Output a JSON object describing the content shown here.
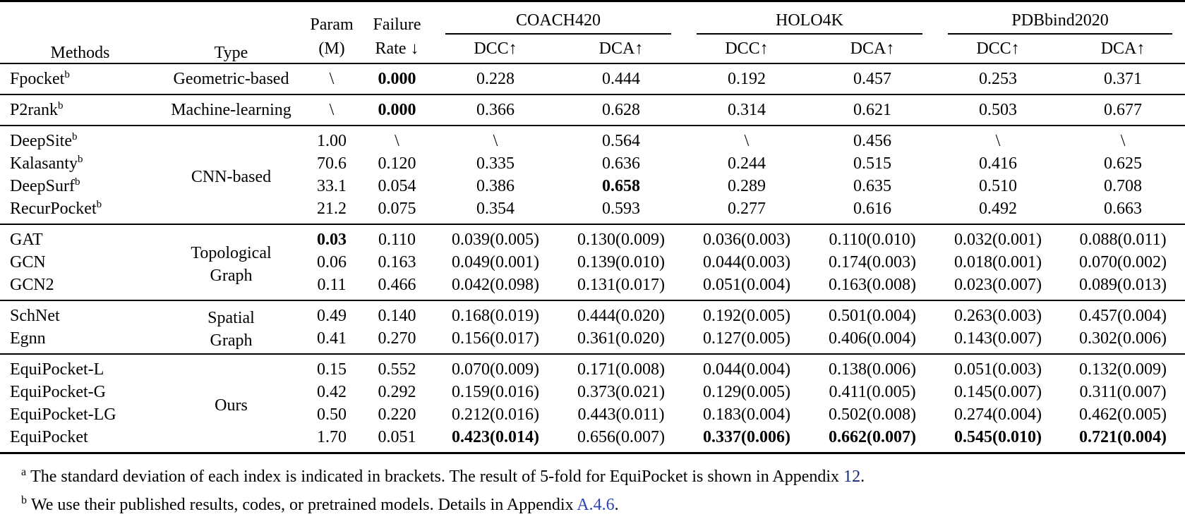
{
  "table": {
    "header": {
      "methods": "Methods",
      "type": "Type",
      "param_line1": "Param",
      "param_line2": "(M)",
      "failure_line1": "Failure",
      "failure_line2": "Rate ↓",
      "dataset_groups": [
        "COACH420",
        "HOLO4K",
        "PDBbind2020"
      ],
      "metric_dcc": "DCC↑",
      "metric_dca": "DCA↑"
    },
    "groups": [
      {
        "type": [
          "Geometric-based"
        ],
        "rows": [
          {
            "method": "Fpocket",
            "sup": "b",
            "cells": [
              "\\",
              "0.000",
              "0.228",
              "0.444",
              "0.192",
              "0.457",
              "0.253",
              "0.371"
            ],
            "bold": [
              1
            ]
          }
        ]
      },
      {
        "type": [
          "Machine-learning"
        ],
        "rows": [
          {
            "method": "P2rank",
            "sup": "b",
            "cells": [
              "\\",
              "0.000",
              "0.366",
              "0.628",
              "0.314",
              "0.621",
              "0.503",
              "0.677"
            ],
            "bold": [
              1
            ]
          }
        ]
      },
      {
        "type": [
          "CNN-based"
        ],
        "rows": [
          {
            "method": "DeepSite",
            "sup": "b",
            "cells": [
              "1.00",
              "\\",
              "\\",
              "0.564",
              "\\",
              "0.456",
              "\\",
              "\\"
            ],
            "bold": []
          },
          {
            "method": "Kalasanty",
            "sup": "b",
            "cells": [
              "70.6",
              "0.120",
              "0.335",
              "0.636",
              "0.244",
              "0.515",
              "0.416",
              "0.625"
            ],
            "bold": []
          },
          {
            "method": "DeepSurf",
            "sup": "b",
            "cells": [
              "33.1",
              "0.054",
              "0.386",
              "0.658",
              "0.289",
              "0.635",
              "0.510",
              "0.708"
            ],
            "bold": [
              3
            ]
          },
          {
            "method": "RecurPocket",
            "sup": "b",
            "cells": [
              "21.2",
              "0.075",
              "0.354",
              "0.593",
              "0.277",
              "0.616",
              "0.492",
              "0.663"
            ],
            "bold": []
          }
        ]
      },
      {
        "type": [
          "Topological",
          "Graph"
        ],
        "rows": [
          {
            "method": "GAT",
            "cells": [
              "0.03",
              "0.110",
              "0.039(0.005)",
              "0.130(0.009)",
              "0.036(0.003)",
              "0.110(0.010)",
              "0.032(0.001)",
              "0.088(0.011)"
            ],
            "bold": [
              0
            ]
          },
          {
            "method": "GCN",
            "cells": [
              "0.06",
              "0.163",
              "0.049(0.001)",
              "0.139(0.010)",
              "0.044(0.003)",
              "0.174(0.003)",
              "0.018(0.001)",
              "0.070(0.002)"
            ],
            "bold": []
          },
          {
            "method": "GCN2",
            "cells": [
              "0.11",
              "0.466",
              "0.042(0.098)",
              "0.131(0.017)",
              "0.051(0.004)",
              "0.163(0.008)",
              "0.023(0.007)",
              "0.089(0.013)"
            ],
            "bold": []
          }
        ]
      },
      {
        "type": [
          "Spatial",
          "Graph"
        ],
        "rows": [
          {
            "method": "SchNet",
            "cells": [
              "0.49",
              "0.140",
              "0.168(0.019)",
              "0.444(0.020)",
              "0.192(0.005)",
              "0.501(0.004)",
              "0.263(0.003)",
              "0.457(0.004)"
            ],
            "bold": []
          },
          {
            "method": "Egnn",
            "cells": [
              "0.41",
              "0.270",
              "0.156(0.017)",
              "0.361(0.020)",
              "0.127(0.005)",
              "0.406(0.004)",
              "0.143(0.007)",
              "0.302(0.006)"
            ],
            "bold": []
          }
        ]
      },
      {
        "type": [
          "Ours"
        ],
        "rows": [
          {
            "method": "EquiPocket-L",
            "cells": [
              "0.15",
              "0.552",
              "0.070(0.009)",
              "0.171(0.008)",
              "0.044(0.004)",
              "0.138(0.006)",
              "0.051(0.003)",
              "0.132(0.009)"
            ],
            "bold": []
          },
          {
            "method": "EquiPocket-G",
            "cells": [
              "0.42",
              "0.292",
              "0.159(0.016)",
              "0.373(0.021)",
              "0.129(0.005)",
              "0.411(0.005)",
              "0.145(0.007)",
              "0.311(0.007)"
            ],
            "bold": []
          },
          {
            "method": "EquiPocket-LG",
            "cells": [
              "0.50",
              "0.220",
              "0.212(0.016)",
              "0.443(0.011)",
              "0.183(0.004)",
              "0.502(0.008)",
              "0.274(0.004)",
              "0.462(0.005)"
            ],
            "bold": []
          },
          {
            "method": "EquiPocket",
            "cells": [
              "1.70",
              "0.051",
              "0.423(0.014)",
              "0.656(0.007)",
              "0.337(0.006)",
              "0.662(0.007)",
              "0.545(0.010)",
              "0.721(0.004)"
            ],
            "bold": [
              2,
              4,
              5,
              6,
              7
            ]
          }
        ]
      }
    ],
    "footnotes": [
      {
        "sup": "a",
        "text_before": "The standard deviation of each index is indicated in brackets. The result of 5-fold for EquiPocket is shown in Appendix ",
        "link": "12",
        "link_color": "#152b80",
        "text_after": "."
      },
      {
        "sup": "b",
        "text_before": "We use their published results, codes, or pretrained models. Details in Appendix ",
        "link": "A.4.6",
        "link_color": "#2c44b5",
        "text_after": "."
      }
    ]
  }
}
